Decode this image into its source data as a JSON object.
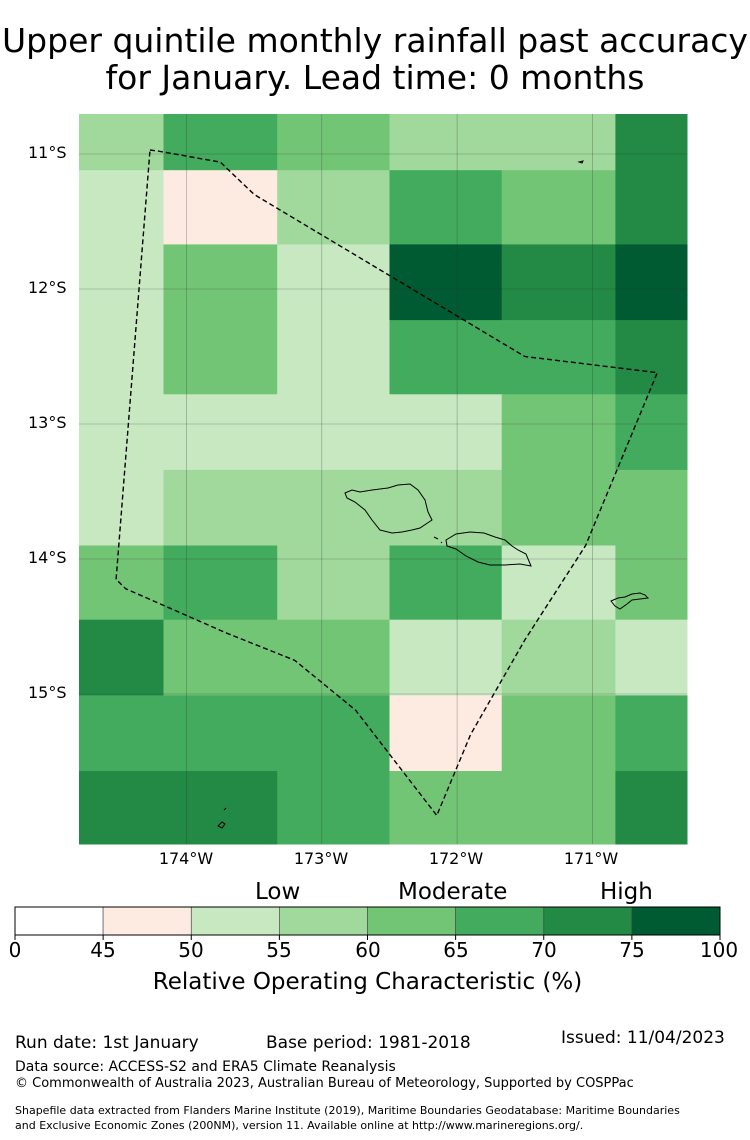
{
  "title_line1": "Upper quintile monthly rainfall past accuracy",
  "title_line2": "for January. Lead time: 0 months",
  "map": {
    "lon_range": [
      -174.8,
      -170.3
    ],
    "lat_range": [
      -16.1,
      -10.7
    ],
    "lat_ticks": [
      {
        "value": -11,
        "label": "11°S"
      },
      {
        "value": -12,
        "label": "12°S"
      },
      {
        "value": -13,
        "label": "13°S"
      },
      {
        "value": -14,
        "label": "14°S"
      },
      {
        "value": -15,
        "label": "15°S"
      }
    ],
    "lon_ticks": [
      {
        "value": -174,
        "label": "174°W"
      },
      {
        "value": -173,
        "label": "173°W"
      },
      {
        "value": -172,
        "label": "172°W"
      },
      {
        "value": -171,
        "label": "171°W"
      }
    ],
    "colors": {
      "45-50": "#fdebe1",
      "50-55": "#c7e8c1",
      "55-60": "#a0d99b",
      "60-65": "#73c576",
      "65-70": "#42ab5d",
      "70-75": "#238a45",
      "75-100": "#005a32"
    },
    "grid_columns_lon": [
      -174.8,
      -174.17,
      -173.33,
      -172.5,
      -171.67,
      -170.83,
      -170.3
    ],
    "grid_rows_lat": [
      -10.7,
      -11.12,
      -11.67,
      -12.23,
      -12.78,
      -13.34,
      -13.9,
      -14.45,
      -15.01,
      -15.57,
      -16.12
    ],
    "grid": [
      [
        "55-60",
        "65-70",
        "60-65",
        "55-60",
        "55-60",
        "70-75"
      ],
      [
        "50-55",
        "45-50",
        "55-60",
        "65-70",
        "60-65",
        "70-75"
      ],
      [
        "50-55",
        "60-65",
        "50-55",
        "75-100",
        "70-75",
        "75-100"
      ],
      [
        "50-55",
        "60-65",
        "50-55",
        "65-70",
        "65-70",
        "70-75"
      ],
      [
        "50-55",
        "50-55",
        "50-55",
        "50-55",
        "60-65",
        "65-70"
      ],
      [
        "50-55",
        "55-60",
        "55-60",
        "55-60",
        "60-65",
        "60-65"
      ],
      [
        "60-65",
        "65-70",
        "55-60",
        "65-70",
        "50-55",
        "60-65"
      ],
      [
        "70-75",
        "60-65",
        "60-65",
        "50-55",
        "55-60",
        "50-55"
      ],
      [
        "65-70",
        "65-70",
        "65-70",
        "45-50",
        "60-65",
        "65-70"
      ],
      [
        "70-75",
        "70-75",
        "65-70",
        "60-65",
        "60-65",
        "70-75"
      ]
    ],
    "eez_boundary": [
      [
        -174.27,
        -10.97
      ],
      [
        -174.2,
        -10.98
      ],
      [
        -173.75,
        -11.06
      ],
      [
        -173.5,
        -11.3
      ],
      [
        -172.8,
        -11.72
      ],
      [
        -171.5,
        -12.5
      ],
      [
        -170.52,
        -12.62
      ],
      [
        -171.05,
        -13.9
      ],
      [
        -171.5,
        -14.6
      ],
      [
        -171.9,
        -15.3
      ],
      [
        -172.15,
        -15.9
      ],
      [
        -172.75,
        -15.12
      ],
      [
        -173.2,
        -14.75
      ],
      [
        -173.7,
        -14.55
      ],
      [
        -174.45,
        -14.22
      ],
      [
        -174.52,
        -14.15
      ],
      [
        -174.27,
        -10.97
      ]
    ]
  },
  "colorbar": {
    "category_labels": [
      "Low",
      "Moderate",
      "High"
    ],
    "bounds": [
      0,
      45,
      50,
      55,
      60,
      65,
      70,
      75,
      100
    ],
    "tick_labels": [
      "0",
      "45",
      "50",
      "55",
      "60",
      "65",
      "70",
      "75",
      "100"
    ],
    "colors": [
      "#ffffff",
      "#fdebe1",
      "#c7e8c1",
      "#a0d99b",
      "#73c576",
      "#42ab5d",
      "#238a45",
      "#005a32"
    ],
    "xlabel": "Relative Operating Characteristic (%)"
  },
  "footer": {
    "run_date": "Run date: 1st January",
    "base_period": "Base period: 1981-2018",
    "issued": "Issued: 11/04/2023",
    "data_source": "Data source: ACCESS-S2 and ERA5 Climate Reanalysis",
    "copyright": "© Commonwealth of Australia 2023, Australian Bureau of Meteorology, Supported by COSPPac",
    "shapefile_line1": "Shapefile data extracted from Flanders Marine Institute (2019), Maritime Boundaries Geodatabase: Maritime Boundaries",
    "shapefile_line2": "and Exclusive Economic Zones (200NM), version 11. Available online at http://www.marineregions.org/."
  }
}
